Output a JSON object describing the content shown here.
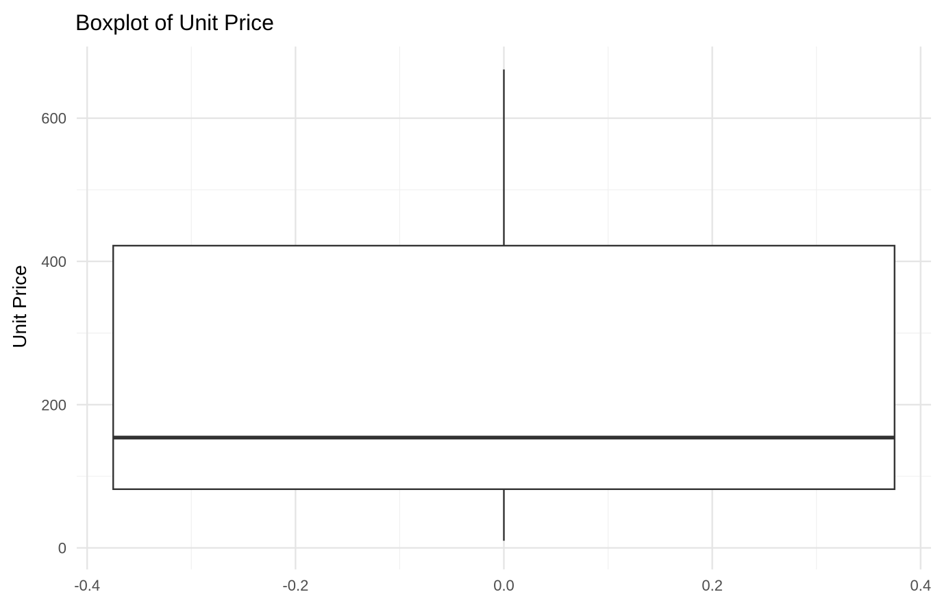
{
  "chart_data": {
    "type": "boxplot",
    "title": "Boxplot of Unit Price",
    "xlabel": "",
    "ylabel": "Unit Price",
    "xlim": [
      -0.41,
      0.41
    ],
    "ylim": [
      -30,
      700
    ],
    "x_ticks": [
      -0.4,
      -0.2,
      0.0,
      0.2,
      0.4
    ],
    "x_tick_labels": [
      "-0.4",
      "-0.2",
      "0.0",
      "0.2",
      "0.4"
    ],
    "y_ticks": [
      0,
      200,
      400,
      600
    ],
    "y_tick_labels": [
      "0",
      "200",
      "400",
      "600"
    ],
    "x_minor_ticks": [
      -0.3,
      -0.1,
      0.1,
      0.3
    ],
    "y_minor_ticks": [
      100,
      300,
      500
    ],
    "grid": true,
    "box": {
      "x_center": 0.0,
      "x_left": -0.375,
      "x_right": 0.375,
      "whisker_low": 10,
      "q1": 82,
      "median": 154,
      "q3": 422,
      "whisker_high": 668
    },
    "colors": {
      "box_outline": "#333333",
      "box_fill": "#ffffff",
      "major_grid": "#e5e5e5",
      "minor_grid": "#f0f0f0",
      "tick_text": "#4d4d4d",
      "title_text": "#000000"
    }
  }
}
